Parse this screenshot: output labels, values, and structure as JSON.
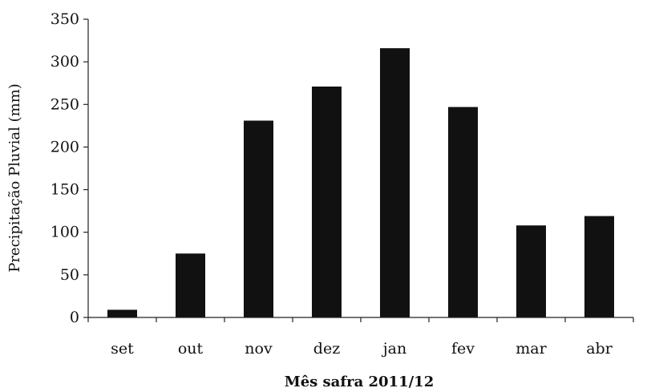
{
  "chart_data": {
    "type": "bar",
    "title": "",
    "xlabel": "Mês safra 2011/12",
    "ylabel": "Precipitação Pluvial (mm)",
    "categories": [
      "set",
      "out",
      "nov",
      "dez",
      "jan",
      "fev",
      "mar",
      "abr"
    ],
    "values": [
      9,
      75,
      231,
      271,
      316,
      247,
      108,
      119
    ],
    "ylim": [
      0,
      350
    ],
    "yticks": [
      0,
      50,
      100,
      150,
      200,
      250,
      300,
      350
    ],
    "grid": false,
    "legend": "none",
    "bar_color": "#111111"
  }
}
